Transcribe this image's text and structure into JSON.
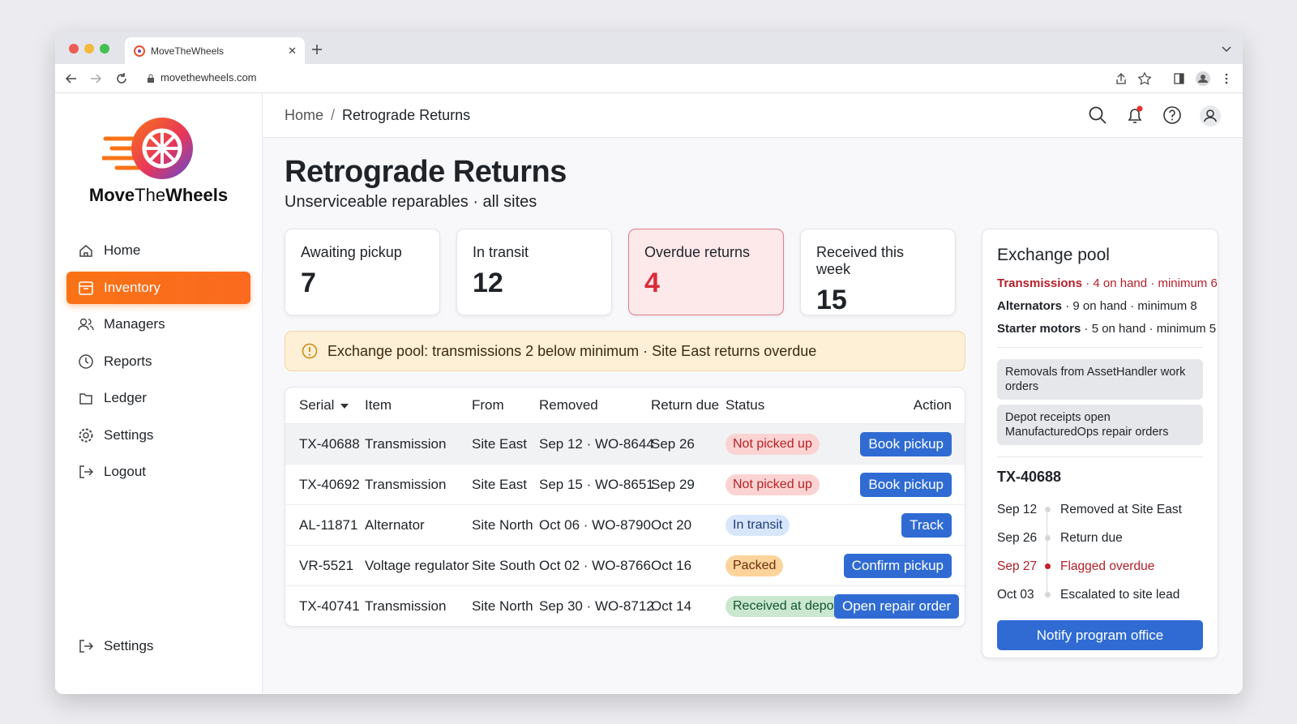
{
  "browser": {
    "tab_title": "MoveTheWheels",
    "url": "movethewheels.com"
  },
  "sidebar": {
    "brand": {
      "first": "Move",
      "middle": "The",
      "last": "Wheels"
    },
    "nav": [
      "Home",
      "Inventory",
      "Managers",
      "Reports",
      "Ledger",
      "Settings",
      "Logout"
    ],
    "active": 1,
    "footer": "Settings"
  },
  "header": {
    "breadcrumb": [
      "Home",
      "Retrograde Returns"
    ],
    "separator": "/"
  },
  "page": {
    "title": "Retrograde Returns",
    "subtitle": "Unserviceable reparables · all sites"
  },
  "kpis": [
    {
      "label": "Awaiting pickup",
      "value": "7",
      "alert": false
    },
    {
      "label": "In transit",
      "value": "12",
      "alert": false
    },
    {
      "label": "Overdue returns",
      "value": "4",
      "alert": true
    },
    {
      "label": "Received this week",
      "value": "15",
      "alert": false
    }
  ],
  "alert": "Exchange pool: transmissions 2 below minimum · Site East returns overdue",
  "table": {
    "columns": [
      "Serial",
      "Item",
      "From",
      "Removed",
      "Return due",
      "Status",
      "Action"
    ],
    "rows": [
      {
        "serial": "TX-40688",
        "item": "Transmission",
        "from": "Site East",
        "removed": "Sep 12 · WO-8644",
        "due": "Sep 26",
        "status": "Not picked up",
        "tone": "danger",
        "action": "Book pickup",
        "selected": true
      },
      {
        "serial": "TX-40692",
        "item": "Transmission",
        "from": "Site East",
        "removed": "Sep 15 · WO-8651",
        "due": "Sep 29",
        "status": "Not picked up",
        "tone": "danger",
        "action": "Book pickup",
        "selected": false
      },
      {
        "serial": "AL-11871",
        "item": "Alternator",
        "from": "Site North",
        "removed": "Oct 06 · WO-8790",
        "due": "Oct 20",
        "status": "In transit",
        "tone": "info",
        "action": "Track",
        "selected": false
      },
      {
        "serial": "VR-5521",
        "item": "Voltage regulator",
        "from": "Site South",
        "removed": "Oct 02 · WO-8766",
        "due": "Oct 16",
        "status": "Packed",
        "tone": "warning",
        "action": "Confirm pickup",
        "selected": false
      },
      {
        "serial": "TX-40741",
        "item": "Transmission",
        "from": "Site North",
        "removed": "Sep 30 · WO-8712",
        "due": "Oct 14",
        "status": "Received at depot",
        "tone": "success",
        "action": "Open repair order",
        "selected": false
      }
    ]
  },
  "pool": {
    "title": "Exchange pool",
    "items": [
      {
        "name": "Transmissions",
        "detail": "· 4 on hand · minimum 6",
        "warn": true
      },
      {
        "name": "Alternators",
        "detail": "· 9 on hand · minimum 8",
        "warn": false
      },
      {
        "name": "Starter motors",
        "detail": "· 5 on hand · minimum 5",
        "warn": false
      }
    ],
    "sources": [
      "Removals from AssetHandler work orders",
      "Depot receipts open ManufacturedOps repair orders"
    ],
    "timeline": {
      "serial": "TX-40688",
      "events": [
        {
          "date": "Sep 12",
          "label": "Removed at Site East",
          "flag": false
        },
        {
          "date": "Sep 26",
          "label": "Return due",
          "flag": false
        },
        {
          "date": "Sep 27",
          "label": "Flagged overdue",
          "flag": true
        },
        {
          "date": "Oct 03",
          "label": "Escalated to site lead",
          "flag": false
        }
      ]
    },
    "button": "Notify program office"
  }
}
